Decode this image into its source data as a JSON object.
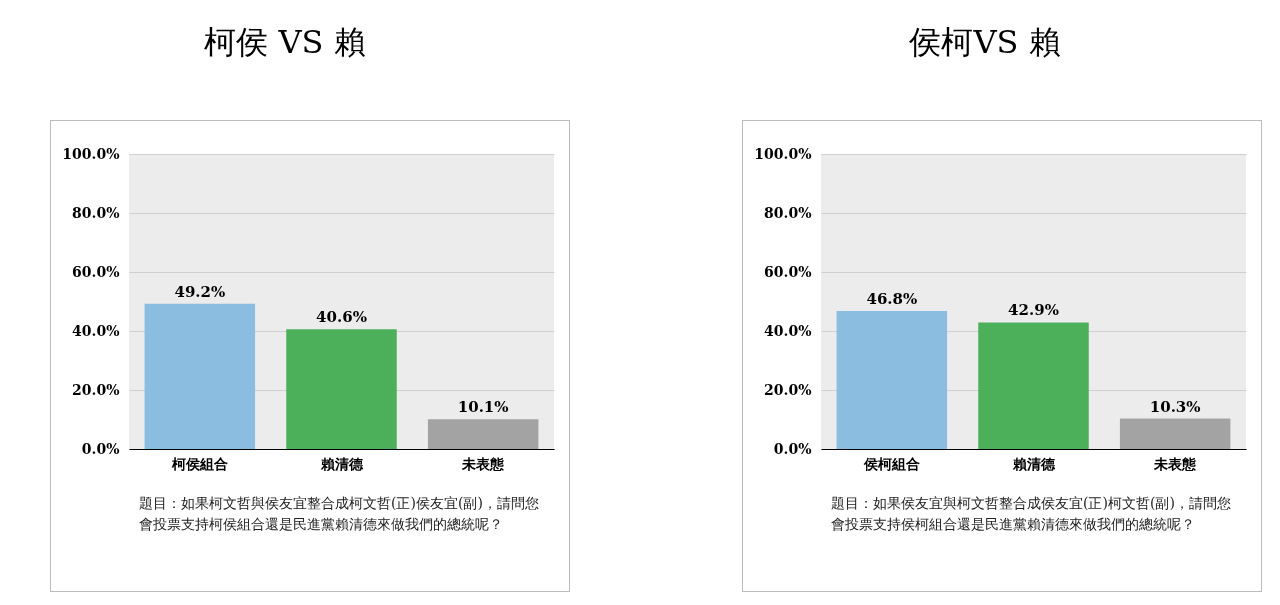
{
  "chart_data": [
    {
      "type": "bar",
      "title": "柯侯 VS 賴",
      "categories": [
        "柯侯組合",
        "賴清德",
        "未表態"
      ],
      "values": [
        49.2,
        40.6,
        10.1
      ],
      "colors": [
        "#8bbde0",
        "#4caf5a",
        "#a3a3a3"
      ],
      "value_labels": [
        "49.2%",
        "40.6%",
        "10.1%"
      ],
      "ylim": [
        0,
        100
      ],
      "yticks": [
        {
          "value": 0,
          "label": "0.0%"
        },
        {
          "value": 20,
          "label": "20.0%"
        },
        {
          "value": 40,
          "label": "40.0%"
        },
        {
          "value": 60,
          "label": "60.0%"
        },
        {
          "value": 80,
          "label": "80.0%"
        },
        {
          "value": 100,
          "label": "100.0%"
        }
      ],
      "grid": "y",
      "annotations": [
        "題目：如果柯文哲與侯友宜整合成柯文哲(正)侯友宜(副)，請問您會投票支持柯侯組合還是民進黨賴清德來做我們的總統呢？"
      ]
    },
    {
      "type": "bar",
      "title": "侯柯VS 賴",
      "categories": [
        "侯柯組合",
        "賴清德",
        "未表態"
      ],
      "values": [
        46.8,
        42.9,
        10.3
      ],
      "colors": [
        "#8bbde0",
        "#4caf5a",
        "#a3a3a3"
      ],
      "value_labels": [
        "46.8%",
        "42.9%",
        "10.3%"
      ],
      "ylim": [
        0,
        100
      ],
      "yticks": [
        {
          "value": 0,
          "label": "0.0%"
        },
        {
          "value": 20,
          "label": "20.0%"
        },
        {
          "value": 40,
          "label": "40.0%"
        },
        {
          "value": 60,
          "label": "60.0%"
        },
        {
          "value": 80,
          "label": "80.0%"
        },
        {
          "value": 100,
          "label": "100.0%"
        }
      ],
      "grid": "y",
      "annotations": [
        "題目：如果侯友宜與柯文哲整合成侯友宜(正)柯文哲(副)，請問您會投票支持侯柯組合還是民進黨賴清德來做我們的總統呢？"
      ]
    }
  ]
}
